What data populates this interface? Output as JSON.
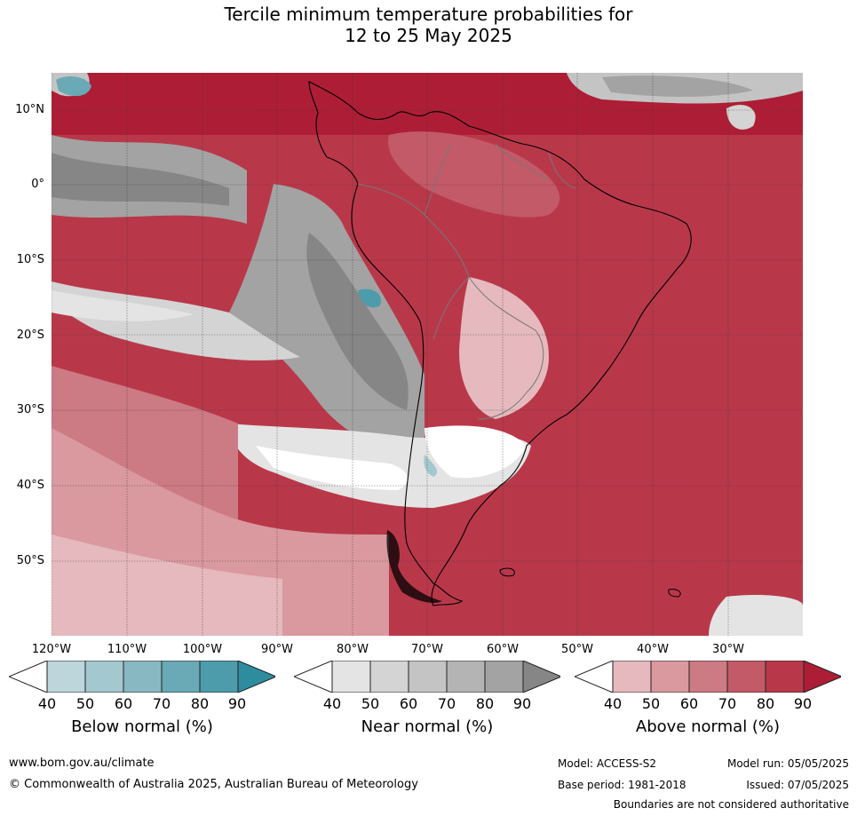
{
  "title": {
    "line1": "Tercile minimum temperature probabilities for",
    "line2": "12 to 25 May 2025"
  },
  "latitude_labels": [
    "10°N",
    "0°",
    "10°S",
    "20°S",
    "30°S",
    "40°S",
    "50°S"
  ],
  "longitude_labels": [
    "120°W",
    "110°W",
    "100°W",
    "90°W",
    "80°W",
    "70°W",
    "60°W",
    "50°W",
    "40°W",
    "30°W"
  ],
  "colorbars": [
    {
      "label": "Below normal (%)",
      "ticks": [
        "40",
        "50",
        "60",
        "70",
        "80",
        "90"
      ],
      "colors": [
        "#ffffff",
        "#bcd6dc",
        "#a4c8cf",
        "#88b8c1",
        "#6aa9b6",
        "#4c9cab",
        "#2e8c9f"
      ]
    },
    {
      "label": "Near normal (%)",
      "ticks": [
        "40",
        "50",
        "60",
        "70",
        "80",
        "90"
      ],
      "colors": [
        "#ffffff",
        "#e4e4e4",
        "#d4d4d4",
        "#c4c4c4",
        "#b4b4b4",
        "#a3a3a3",
        "#868686"
      ]
    },
    {
      "label": "Above normal (%)",
      "ticks": [
        "40",
        "50",
        "60",
        "70",
        "80",
        "90"
      ],
      "colors": [
        "#ffffff",
        "#e5b9be",
        "#d9999f",
        "#cc7a83",
        "#c25a67",
        "#b8384a",
        "#ad1e36"
      ]
    }
  ],
  "footer": {
    "website": "www.bom.gov.au/climate",
    "copyright": "© Commonwealth of Australia 2025, Australian Bureau of Meteorology",
    "model": "Model: ACCESS-S2",
    "base_period": "Base period: 1981-2018",
    "model_run": "Model run: 05/05/2025",
    "issued": "Issued: 07/05/2025",
    "disclaimer": "Boundaries are not considered authoritative"
  }
}
